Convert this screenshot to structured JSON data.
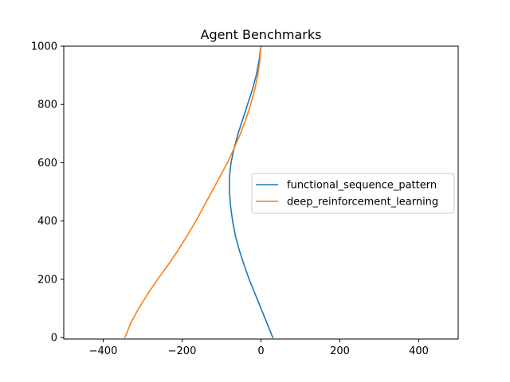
{
  "chart_data": {
    "type": "line",
    "title": "Agent Benchmarks",
    "xlabel": "",
    "ylabel": "",
    "xlim": [
      -500,
      500
    ],
    "ylim": [
      -5,
      1000
    ],
    "xticks": [
      -400,
      -200,
      0,
      200,
      400
    ],
    "xtick_labels": [
      "−400",
      "−200",
      "0",
      "200",
      "400"
    ],
    "yticks": [
      0,
      200,
      400,
      600,
      800,
      1000
    ],
    "ytick_labels": [
      "0",
      "200",
      "400",
      "600",
      "800",
      "1000"
    ],
    "grid": false,
    "legend_position": "center-right",
    "series": [
      {
        "name": "functional_sequence_pattern",
        "color": "#1f77b4",
        "points": [
          [
            30,
            0
          ],
          [
            15,
            50
          ],
          [
            0,
            100
          ],
          [
            -15,
            150
          ],
          [
            -30,
            200
          ],
          [
            -43,
            250
          ],
          [
            -55,
            300
          ],
          [
            -65,
            350
          ],
          [
            -72,
            400
          ],
          [
            -77,
            450
          ],
          [
            -80,
            500
          ],
          [
            -80,
            550
          ],
          [
            -76,
            600
          ],
          [
            -68,
            650
          ],
          [
            -58,
            700
          ],
          [
            -46,
            750
          ],
          [
            -34,
            800
          ],
          [
            -22,
            850
          ],
          [
            -12,
            900
          ],
          [
            -5,
            950
          ],
          [
            0,
            1000
          ]
        ]
      },
      {
        "name": "deep_reinforcement_learning",
        "color": "#ff7f0e",
        "points": [
          [
            -345,
            0
          ],
          [
            -330,
            50
          ],
          [
            -310,
            100
          ],
          [
            -287,
            150
          ],
          [
            -262,
            200
          ],
          [
            -235,
            250
          ],
          [
            -210,
            300
          ],
          [
            -187,
            350
          ],
          [
            -165,
            400
          ],
          [
            -145,
            450
          ],
          [
            -125,
            500
          ],
          [
            -105,
            550
          ],
          [
            -85,
            600
          ],
          [
            -68,
            650
          ],
          [
            -52,
            700
          ],
          [
            -38,
            750
          ],
          [
            -26,
            800
          ],
          [
            -16,
            850
          ],
          [
            -8,
            900
          ],
          [
            -3,
            950
          ],
          [
            0,
            1000
          ]
        ]
      }
    ]
  }
}
